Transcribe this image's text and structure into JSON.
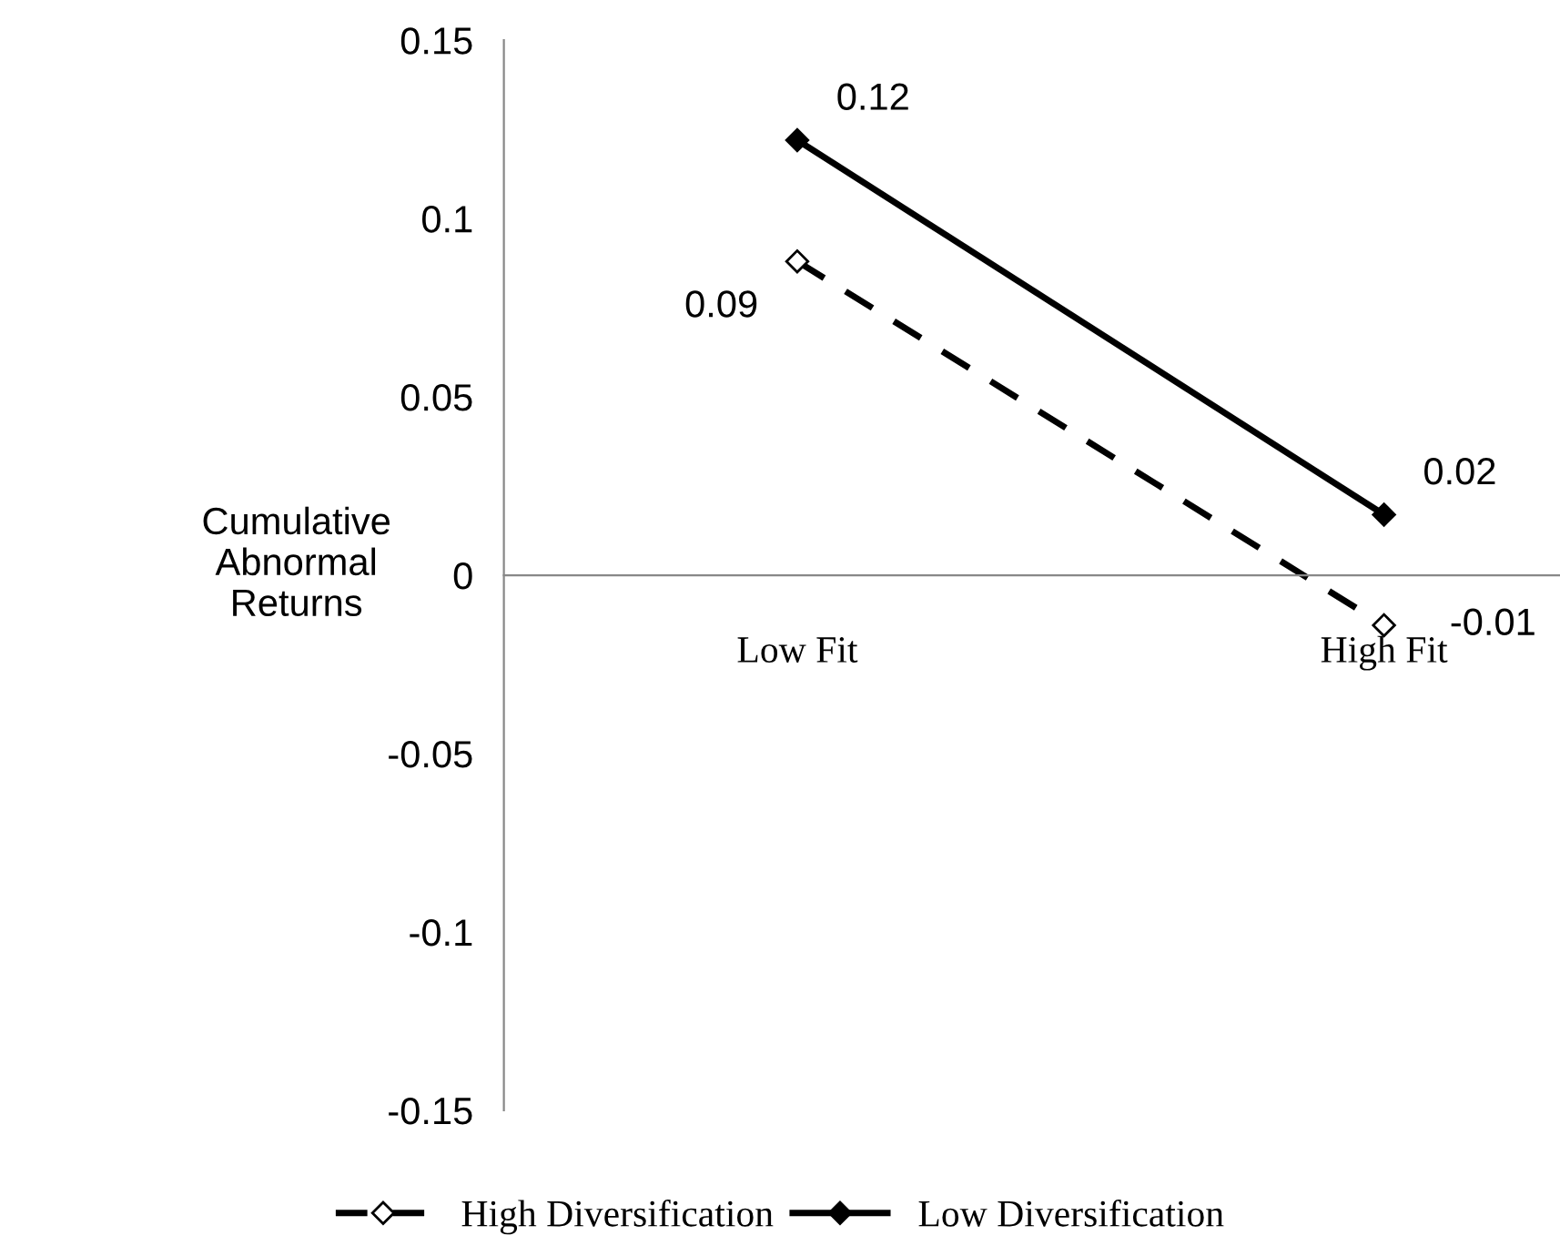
{
  "chart_data": {
    "type": "line",
    "ylabel": "Cumulative\nAbnormal\nReturns",
    "categories": [
      "Low Fit",
      "High Fit"
    ],
    "series": [
      {
        "name": "High Diversification",
        "color": "#000000",
        "values": [
          0.088,
          -0.014
        ],
        "value_labels": [
          "0.09",
          "-0.01"
        ],
        "line_style": "dashed",
        "marker": "diamond"
      },
      {
        "name": "Low Diversification",
        "color": "#000000",
        "values": [
          0.122,
          0.017
        ],
        "value_labels": [
          "0.12",
          "0.02"
        ],
        "line_style": "solid",
        "marker": "diamond"
      }
    ],
    "ylim": [
      -0.15,
      0.15
    ],
    "yticks": [
      -0.15,
      -0.1,
      -0.05,
      0,
      0.05,
      0.1,
      0.15
    ],
    "grid": false,
    "legend": "bottom"
  }
}
